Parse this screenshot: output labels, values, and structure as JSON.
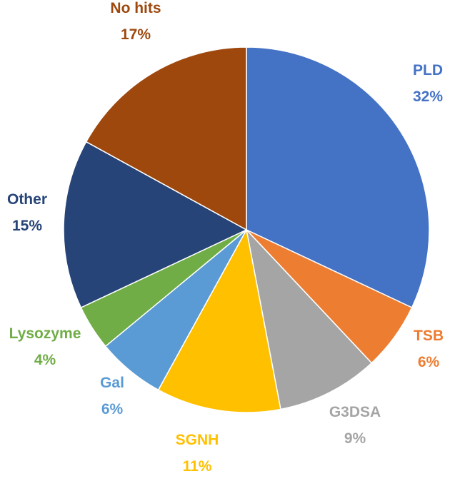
{
  "chart_data": {
    "type": "pie",
    "title": "",
    "slices": [
      {
        "name": "PLD",
        "percent_label": "32%",
        "value": 32,
        "color": "#4472C4"
      },
      {
        "name": "TSB",
        "percent_label": "6%",
        "value": 6,
        "color": "#ED7D31"
      },
      {
        "name": "G3DSA",
        "percent_label": "9%",
        "value": 9,
        "color": "#A5A5A5"
      },
      {
        "name": "SGNH",
        "percent_label": "11%",
        "value": 11,
        "color": "#FFC000"
      },
      {
        "name": "Gal",
        "percent_label": "6%",
        "value": 6,
        "color": "#5B9BD5"
      },
      {
        "name": "Lysozyme",
        "percent_label": "4%",
        "value": 4,
        "color": "#70AD47"
      },
      {
        "name": "Other",
        "percent_label": "15%",
        "value": 15,
        "color": "#264478"
      },
      {
        "name": "No hits",
        "percent_label": "17%",
        "value": 17,
        "color": "#9E480E"
      }
    ]
  }
}
